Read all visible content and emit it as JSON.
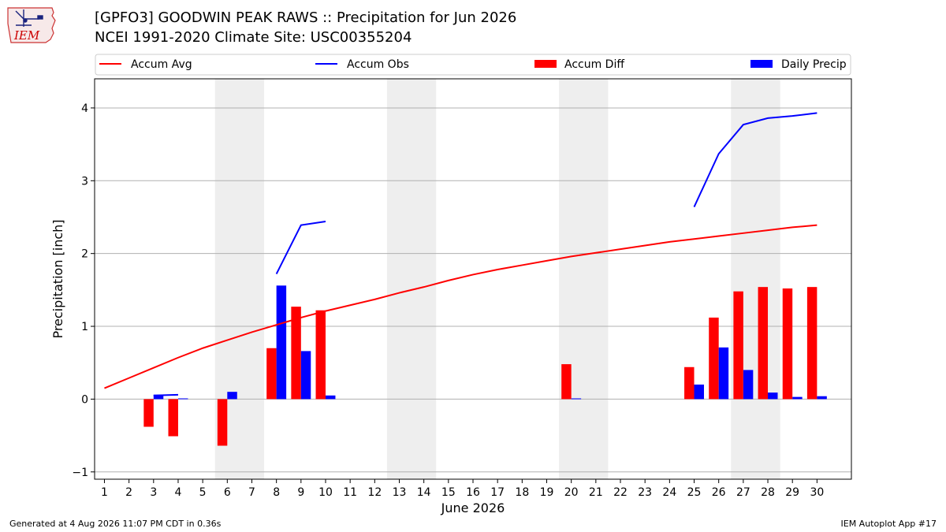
{
  "logo": {
    "text": "IEM"
  },
  "header": {
    "title_line1": "[GPFO3] GOODWIN PEAK RAWS :: Precipitation for Jun 2026",
    "title_line2": "NCEI 1991-2020 Climate Site: USC00355204"
  },
  "footer": {
    "left": "Generated at 4 Aug 2026 11:07 PM CDT in 0.36s",
    "right": "IEM Autoplot App #17"
  },
  "colors": {
    "avg": "#ff0000",
    "obs": "#0000ff",
    "diff": "#ff0000",
    "daily": "#0000ff",
    "weekend": "#eeeeee",
    "grid": "#b0b0b0"
  },
  "chart_data": {
    "type": "bar",
    "xlabel": "June 2026",
    "ylabel": "Precipitation [inch]",
    "ylim": [
      -1.1,
      4.4
    ],
    "xlim": [
      0.6,
      31.4
    ],
    "yticks": [
      "−1",
      "0",
      "1",
      "2",
      "3",
      "4"
    ],
    "ytick_values": [
      -1,
      0,
      1,
      2,
      3,
      4
    ],
    "grid": true,
    "legend_position": "top",
    "categories": [
      "1",
      "2",
      "3",
      "4",
      "5",
      "6",
      "7",
      "8",
      "9",
      "10",
      "11",
      "12",
      "13",
      "14",
      "15",
      "16",
      "17",
      "18",
      "19",
      "20",
      "21",
      "22",
      "23",
      "24",
      "25",
      "26",
      "27",
      "28",
      "29",
      "30"
    ],
    "weekend_spans": [
      [
        6,
        7
      ],
      [
        13,
        14
      ],
      [
        20,
        21
      ],
      [
        27,
        28
      ]
    ],
    "series": [
      {
        "name": "Accum Avg",
        "type": "line",
        "values": [
          0.15,
          0.29,
          0.43,
          0.57,
          0.7,
          0.81,
          0.92,
          1.02,
          1.12,
          1.21,
          1.29,
          1.37,
          1.46,
          1.54,
          1.63,
          1.71,
          1.78,
          1.84,
          1.9,
          1.96,
          2.01,
          2.06,
          2.11,
          2.16,
          2.2,
          2.24,
          2.28,
          2.32,
          2.36,
          2.39
        ]
      },
      {
        "name": "Accum Obs",
        "type": "line",
        "values": [
          null,
          null,
          0.05,
          0.06,
          null,
          null,
          null,
          1.72,
          2.39,
          2.44,
          null,
          null,
          null,
          null,
          null,
          null,
          null,
          null,
          null,
          null,
          null,
          null,
          null,
          null,
          2.64,
          3.37,
          3.77,
          3.86,
          3.89,
          3.93
        ]
      },
      {
        "name": "Accum Diff",
        "type": "bar",
        "values": [
          null,
          null,
          -0.38,
          -0.51,
          null,
          -0.64,
          null,
          0.7,
          1.27,
          1.22,
          null,
          null,
          null,
          null,
          null,
          null,
          null,
          null,
          null,
          0.48,
          null,
          null,
          null,
          null,
          0.44,
          1.12,
          1.48,
          1.54,
          1.52,
          1.54
        ]
      },
      {
        "name": "Daily Precip",
        "type": "bar",
        "values": [
          0,
          0,
          0.06,
          0.01,
          0,
          0.1,
          0,
          1.56,
          0.66,
          0.05,
          0,
          0,
          0,
          0,
          0,
          0,
          0,
          0,
          0,
          0.01,
          0,
          0,
          0,
          0,
          0.2,
          0.71,
          0.4,
          0.09,
          0.03,
          0.04
        ]
      }
    ]
  }
}
